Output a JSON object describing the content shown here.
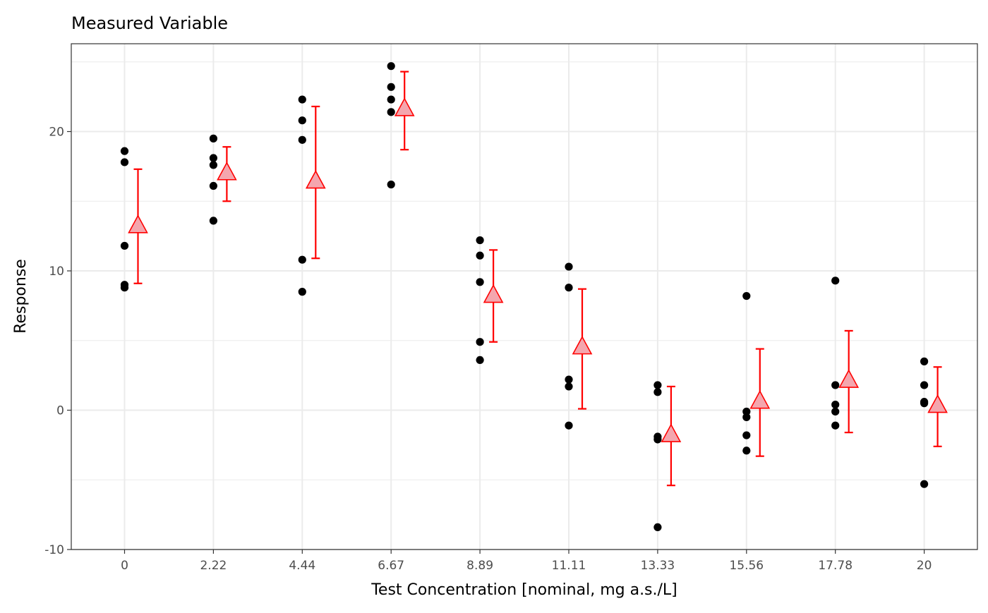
{
  "chart_data": {
    "type": "scatter",
    "title": "Measured Variable",
    "xlabel": "Test Concentration [nominal, mg a.s./L]",
    "ylabel": "Response",
    "ylim": [
      -10,
      25.5
    ],
    "y_ticks": [
      -10,
      0,
      10,
      20
    ],
    "y_tick_labels": [
      "-10",
      "0",
      "10",
      "20"
    ],
    "grid": true,
    "categories": [
      "0",
      "2.22",
      "4.44",
      "6.67",
      "8.89",
      "11.11",
      "13.33",
      "15.56",
      "17.78",
      "20"
    ],
    "observations": [
      [
        18.6,
        17.8,
        11.8,
        9.0,
        8.8
      ],
      [
        19.5,
        18.1,
        17.6,
        16.1,
        13.6
      ],
      [
        22.3,
        20.8,
        19.4,
        10.8,
        8.5
      ],
      [
        24.7,
        23.2,
        22.3,
        21.4,
        16.2
      ],
      [
        12.2,
        11.1,
        9.2,
        4.9,
        3.6
      ],
      [
        10.3,
        8.8,
        2.2,
        1.7,
        -1.1
      ],
      [
        1.8,
        1.3,
        -1.9,
        -2.1,
        -8.4
      ],
      [
        8.2,
        -0.1,
        -0.5,
        -1.8,
        -2.9
      ],
      [
        9.3,
        1.8,
        0.4,
        -0.1,
        -1.1
      ],
      [
        3.5,
        1.8,
        0.6,
        0.5,
        -5.3
      ]
    ],
    "means": [
      13.2,
      17.0,
      16.4,
      21.6,
      8.2,
      4.5,
      -1.8,
      0.6,
      2.1,
      0.3
    ],
    "error_upper": [
      17.3,
      18.9,
      21.8,
      24.3,
      11.5,
      8.7,
      1.7,
      4.4,
      5.7,
      3.1
    ],
    "error_lower": [
      9.1,
      15.0,
      10.9,
      18.7,
      4.9,
      0.1,
      -5.4,
      -3.3,
      -1.6,
      -2.6
    ],
    "colors": {
      "points": "#000000",
      "mean_stroke": "#ff0000",
      "mean_fill": "#f4a6ae",
      "error_bar": "#ff0000",
      "grid": "#ebebeb",
      "axis_text": "#4d4d4d"
    }
  }
}
